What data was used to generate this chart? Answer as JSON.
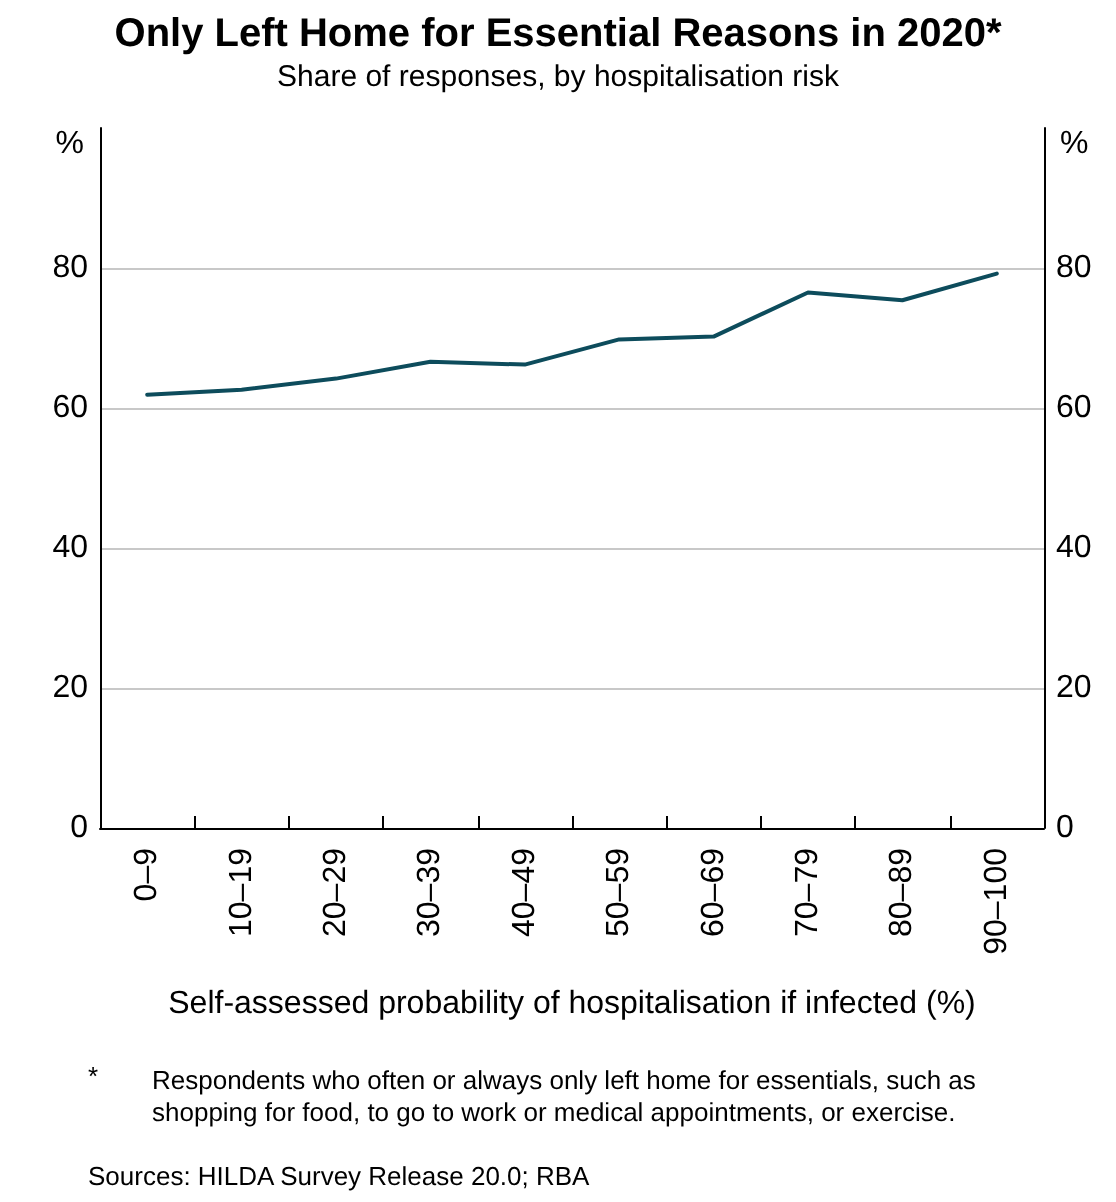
{
  "chart_data": {
    "type": "line",
    "title": "Only Left Home for Essential Reasons in 2020*",
    "subtitle": "Share of responses, by hospitalisation risk",
    "xlabel": "Self-assessed probability of hospitalisation if infected (%)",
    "ylabel": "%",
    "y2label": "%",
    "categories": [
      "0–9",
      "10–19",
      "20–29",
      "30–39",
      "40–49",
      "50–59",
      "60–69",
      "70–79",
      "80–89",
      "90–100"
    ],
    "series": [
      {
        "color": "#0d4c5c",
        "values": [
          61.9,
          62.6,
          64.2,
          66.6,
          66.2,
          69.8,
          70.2,
          76.5,
          75.4,
          79.2
        ]
      }
    ],
    "ylim": [
      0,
      100
    ],
    "yticks": [
      0,
      20,
      40,
      60,
      80
    ],
    "y2lim": [
      0,
      100
    ],
    "y2ticks": [
      0,
      20,
      40,
      60,
      80
    ],
    "grid": "y",
    "marker": "none",
    "line_style": "solid",
    "annotations": [
      "*",
      "Respondents who often or always only left home for essentials, such as shopping for food, to go to work or medical appointments, or exercise.",
      "Sources: HILDA Survey Release 20.0; RBA"
    ]
  }
}
